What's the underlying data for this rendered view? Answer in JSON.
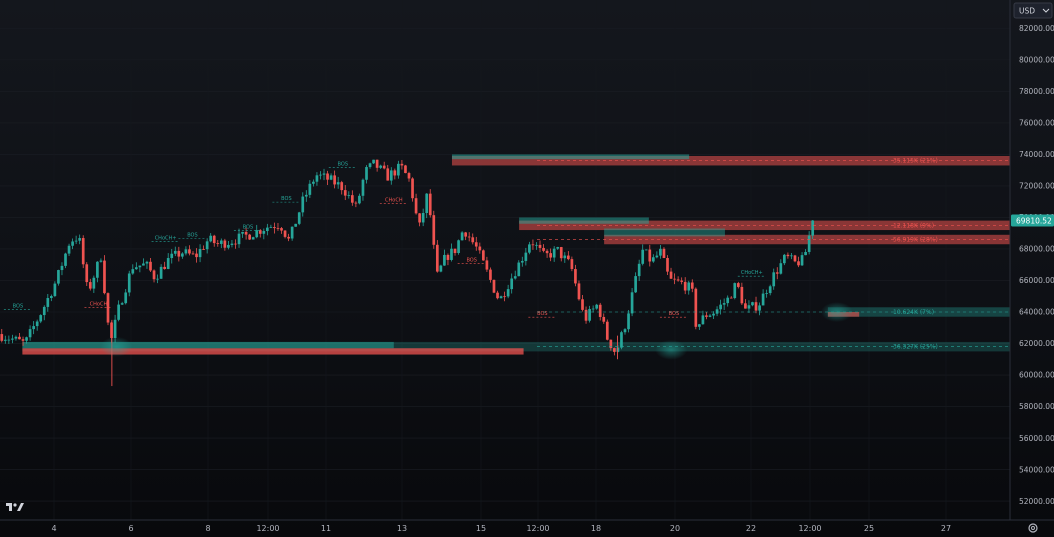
{
  "currency": "USD",
  "price_axis": {
    "ticks": [
      "82000.00",
      "80000.00",
      "78000.00",
      "76000.00",
      "74000.00",
      "72000.00",
      "70000.00",
      "68000.00",
      "66000.00",
      "64000.00",
      "62000.00",
      "60000.00",
      "58000.00",
      "56000.00",
      "54000.00",
      "52000.00"
    ],
    "last_price": "69810.52"
  },
  "time_axis": {
    "ticks": [
      "4",
      "6",
      "8",
      "12:00",
      "11",
      "13",
      "15",
      "12:00",
      "18",
      "20",
      "22",
      "12:00",
      "25",
      "27"
    ]
  },
  "liquidity_levels": [
    {
      "label": "35.115K (21%)",
      "price": 73600,
      "side": "sell"
    },
    {
      "label": "12.118K (9%)",
      "price": 69500,
      "side": "sell"
    },
    {
      "label": "56.919K (28%)",
      "price": 68600,
      "side": "sell"
    },
    {
      "label": "10.624K (7%)",
      "price": 64000,
      "side": "buy"
    },
    {
      "label": "36.327K (25%)",
      "price": 61800,
      "side": "buy"
    }
  ],
  "structure_labels": [
    {
      "text": "BOS",
      "price": 64300,
      "bar": 0.02,
      "color": "#26a69a"
    },
    {
      "text": "CHoCH",
      "price": 64400,
      "bar": 0.11,
      "color": "#ef5350"
    },
    {
      "text": "CHoCH+",
      "price": 68600,
      "bar": 0.185,
      "color": "#26a69a"
    },
    {
      "text": "BOS",
      "price": 68800,
      "bar": 0.215,
      "color": "#26a69a"
    },
    {
      "text": "BOS",
      "price": 69300,
      "bar": 0.277,
      "color": "#26a69a"
    },
    {
      "text": "BOS",
      "price": 71100,
      "bar": 0.32,
      "color": "#26a69a"
    },
    {
      "text": "BOS",
      "price": 73300,
      "bar": 0.383,
      "color": "#26a69a"
    },
    {
      "text": "CHoCH",
      "price": 71000,
      "bar": 0.44,
      "color": "#ef5350"
    },
    {
      "text": "BOS",
      "price": 67200,
      "bar": 0.527,
      "color": "#ef5350"
    },
    {
      "text": "BOS",
      "price": 63800,
      "bar": 0.606,
      "color": "#ef5350"
    },
    {
      "text": "BOS",
      "price": 63800,
      "bar": 0.753,
      "color": "#ef5350"
    },
    {
      "text": "CHoCH+",
      "price": 66400,
      "bar": 0.84,
      "color": "#26a69a"
    }
  ],
  "chart_data": {
    "type": "candlestick",
    "ylim": [
      50800,
      83800
    ],
    "up_color": "#26a69a",
    "down_color": "#ef5350",
    "close_path": [
      [
        0.0,
        62600
      ],
      [
        0.03,
        62000
      ],
      [
        0.05,
        64200
      ],
      [
        0.065,
        66000
      ],
      [
        0.08,
        68500
      ],
      [
        0.09,
        68800
      ],
      [
        0.1,
        65200
      ],
      [
        0.115,
        67600
      ],
      [
        0.125,
        61900
      ],
      [
        0.135,
        64300
      ],
      [
        0.15,
        66900
      ],
      [
        0.165,
        67000
      ],
      [
        0.175,
        66200
      ],
      [
        0.19,
        67300
      ],
      [
        0.205,
        67800
      ],
      [
        0.22,
        67500
      ],
      [
        0.235,
        68600
      ],
      [
        0.245,
        68300
      ],
      [
        0.26,
        68500
      ],
      [
        0.28,
        68900
      ],
      [
        0.3,
        69400
      ],
      [
        0.315,
        69600
      ],
      [
        0.325,
        68500
      ],
      [
        0.34,
        71000
      ],
      [
        0.355,
        72700
      ],
      [
        0.37,
        72400
      ],
      [
        0.385,
        71900
      ],
      [
        0.4,
        70600
      ],
      [
        0.41,
        72900
      ],
      [
        0.42,
        73400
      ],
      [
        0.435,
        72600
      ],
      [
        0.45,
        73200
      ],
      [
        0.46,
        72300
      ],
      [
        0.47,
        69200
      ],
      [
        0.48,
        71600
      ],
      [
        0.49,
        66200
      ],
      [
        0.5,
        67500
      ],
      [
        0.51,
        67900
      ],
      [
        0.52,
        69300
      ],
      [
        0.535,
        68000
      ],
      [
        0.55,
        66000
      ],
      [
        0.56,
        64700
      ],
      [
        0.57,
        65800
      ],
      [
        0.585,
        67400
      ],
      [
        0.595,
        68600
      ],
      [
        0.61,
        67500
      ],
      [
        0.625,
        67900
      ],
      [
        0.64,
        66900
      ],
      [
        0.655,
        63500
      ],
      [
        0.67,
        64500
      ],
      [
        0.68,
        62400
      ],
      [
        0.69,
        61400
      ],
      [
        0.7,
        63100
      ],
      [
        0.71,
        65500
      ],
      [
        0.72,
        67900
      ],
      [
        0.73,
        67200
      ],
      [
        0.74,
        67800
      ],
      [
        0.75,
        66000
      ],
      [
        0.765,
        65800
      ],
      [
        0.775,
        65400
      ],
      [
        0.78,
        63000
      ],
      [
        0.79,
        63800
      ],
      [
        0.8,
        64000
      ],
      [
        0.815,
        64800
      ],
      [
        0.825,
        65800
      ],
      [
        0.835,
        64100
      ],
      [
        0.85,
        64500
      ],
      [
        0.865,
        66200
      ],
      [
        0.88,
        67500
      ],
      [
        0.89,
        67100
      ],
      [
        0.9,
        67300
      ],
      [
        0.91,
        69810
      ]
    ]
  },
  "colors": {
    "background": "#0b0d11",
    "up": "#26a69a",
    "down": "#ef5350",
    "axis_text": "#b2b5be"
  },
  "icons": {
    "logo": "tradingview-logo-icon",
    "settings": "gear-icon",
    "currency_menu": "chevron-down-icon"
  }
}
